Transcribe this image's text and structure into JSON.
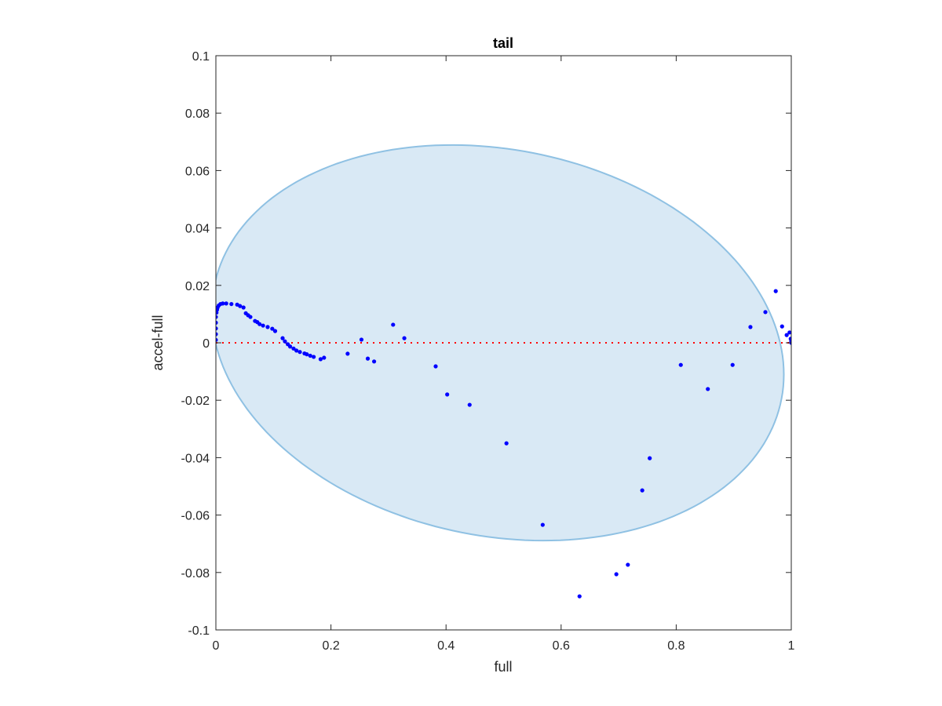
{
  "chart_data": {
    "type": "scatter",
    "title": "tail",
    "xlabel": "full",
    "ylabel": "accel-full",
    "xlim": [
      0,
      1
    ],
    "ylim": [
      -0.1,
      0.1
    ],
    "xticks": [
      0,
      0.2,
      0.4,
      0.6,
      0.8,
      1
    ],
    "xtick_labels": [
      "0",
      "0.2",
      "0.4",
      "0.6",
      "0.8",
      "1"
    ],
    "yticks": [
      0.1,
      0.08,
      0.06,
      0.04,
      0.02,
      0,
      -0.02,
      -0.04,
      -0.06,
      -0.08,
      -0.1
    ],
    "ytick_labels": [
      "0.1",
      "0.08",
      "0.06",
      "0.04",
      "0.02",
      "0",
      "-0.02",
      "-0.04",
      "-0.06",
      "-0.08",
      "-0.1"
    ],
    "grid": false,
    "reference_line": {
      "y": 0,
      "style": "dotted",
      "color": "#ff0000"
    },
    "region": {
      "shape": "ellipse",
      "center": [
        0.49,
        0
      ],
      "x_semi": 0.497,
      "y_amp": 0.068,
      "y_shear": -0.011,
      "fill": "#d9e9f5",
      "edge": "#8fc1e3"
    },
    "points_color": "#0000ff",
    "points": {
      "x": [
        0,
        0,
        0,
        0,
        0,
        0.001,
        0.002,
        0.003,
        0.005,
        0.008,
        0.012,
        0.018,
        0.027,
        0.037,
        0.042,
        0.048,
        0.052,
        0.056,
        0.06,
        0.068,
        0.072,
        0.076,
        0.082,
        0.09,
        0.098,
        0.103,
        0.116,
        0.12,
        0.125,
        0.129,
        0.135,
        0.14,
        0.146,
        0.154,
        0.158,
        0.164,
        0.17,
        0.182,
        0.188,
        0.229,
        0.253,
        0.264,
        0.275,
        0.308,
        0.3275,
        0.382,
        0.402,
        0.441,
        0.505,
        0.568,
        0.632,
        0.696,
        0.716,
        0.741,
        0.754,
        0.808,
        0.855,
        0.898,
        0.929,
        0.955,
        0.973,
        0.984,
        0.992,
        0.997,
        0.999,
        1.0,
        1.0
      ],
      "y": [
        0.001,
        0.003,
        0.005,
        0.007,
        0.009,
        0.0105,
        0.0115,
        0.0123,
        0.013,
        0.0135,
        0.0137,
        0.0137,
        0.0135,
        0.0133,
        0.0128,
        0.0123,
        0.0103,
        0.0096,
        0.009,
        0.0076,
        0.0072,
        0.0065,
        0.006,
        0.0055,
        0.0049,
        0.0041,
        0.0016,
        0.0005,
        -0.0005,
        -0.0013,
        -0.002,
        -0.0027,
        -0.0032,
        -0.0037,
        -0.004,
        -0.0045,
        -0.0049,
        -0.0057,
        -0.0052,
        -0.0038,
        0.0011,
        -0.0055,
        -0.0065,
        0.0063,
        0.0016,
        -0.0082,
        -0.018,
        -0.0216,
        -0.035,
        -0.0634,
        -0.0883,
        -0.0806,
        -0.0773,
        -0.0514,
        -0.0402,
        -0.0077,
        -0.0161,
        -0.0077,
        0.0055,
        0.0107,
        0.018,
        0.0057,
        0.0027,
        0.0036,
        0.0014,
        0.0005,
        0
      ]
    }
  }
}
